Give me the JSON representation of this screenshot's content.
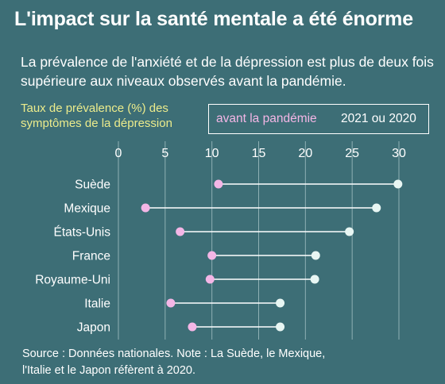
{
  "header": {
    "title": "L'impact sur la santé mentale a été énorme",
    "subtitle": "La prévalence de l'anxiété et de la dépression est plus de deux fois supérieure aux niveaux observés avant la pandémie.",
    "ylabel_line1": "Taux de prévalence (%) des",
    "ylabel_line2": "symptômes de la dépression"
  },
  "legend": {
    "pre": "avant la pandémie",
    "post": "2021 ou 2020"
  },
  "footer": {
    "line1": "Source : Données nationales. Note : La Suède, le Mexique,",
    "line2": "l'Italie et le Japon réfèrent à 2020."
  },
  "colors": {
    "background": "#3d6e76",
    "pre": "#f4b6e6",
    "post": "#e8f6f3",
    "line": "#ffffff",
    "grid": "#8fb0b4",
    "label_yellow": "#ecec8c"
  },
  "chart_data": {
    "type": "dumbbell",
    "title": "",
    "xlim": [
      0,
      30
    ],
    "xticks": [
      0,
      5,
      10,
      15,
      20,
      25,
      30
    ],
    "grid": true,
    "legend_position": "top-right",
    "categories": [
      "Suède",
      "Mexique",
      "États-Unis",
      "France",
      "Royaume-Uni",
      "Italie",
      "Japon"
    ],
    "series": [
      {
        "name": "avant la pandémie",
        "values": [
          10.7,
          2.9,
          6.6,
          10.0,
          9.8,
          5.6,
          7.9
        ]
      },
      {
        "name": "2021 ou 2020",
        "values": [
          29.9,
          27.6,
          24.7,
          21.1,
          21.0,
          17.3,
          17.3
        ]
      }
    ]
  }
}
